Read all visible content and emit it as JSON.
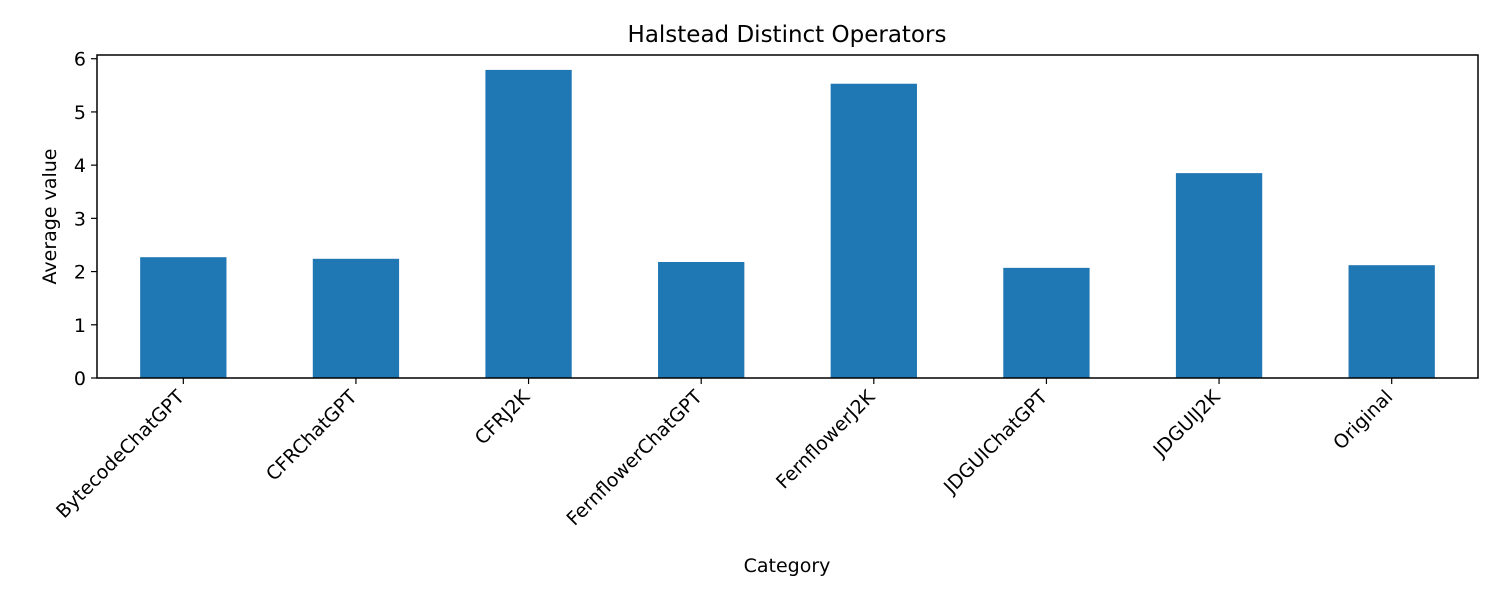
{
  "chart_data": {
    "type": "bar",
    "title": "Halstead Distinct Operators",
    "xlabel": "Category",
    "ylabel": "Average value",
    "categories": [
      "BytecodeChatGPT",
      "CFRChatGPT",
      "CFRJ2K",
      "FernflowerChatGPT",
      "FernflowerJ2K",
      "JDGUIChatGPT",
      "JDGUIJ2K",
      "Original"
    ],
    "values": [
      2.27,
      2.24,
      5.79,
      2.18,
      5.53,
      2.07,
      3.85,
      2.12
    ],
    "ylim": [
      0,
      6.07
    ],
    "yticks": [
      0,
      1,
      2,
      3,
      4,
      5,
      6
    ],
    "bar_color": "#1f77b4",
    "grid": false,
    "legend": "none"
  }
}
